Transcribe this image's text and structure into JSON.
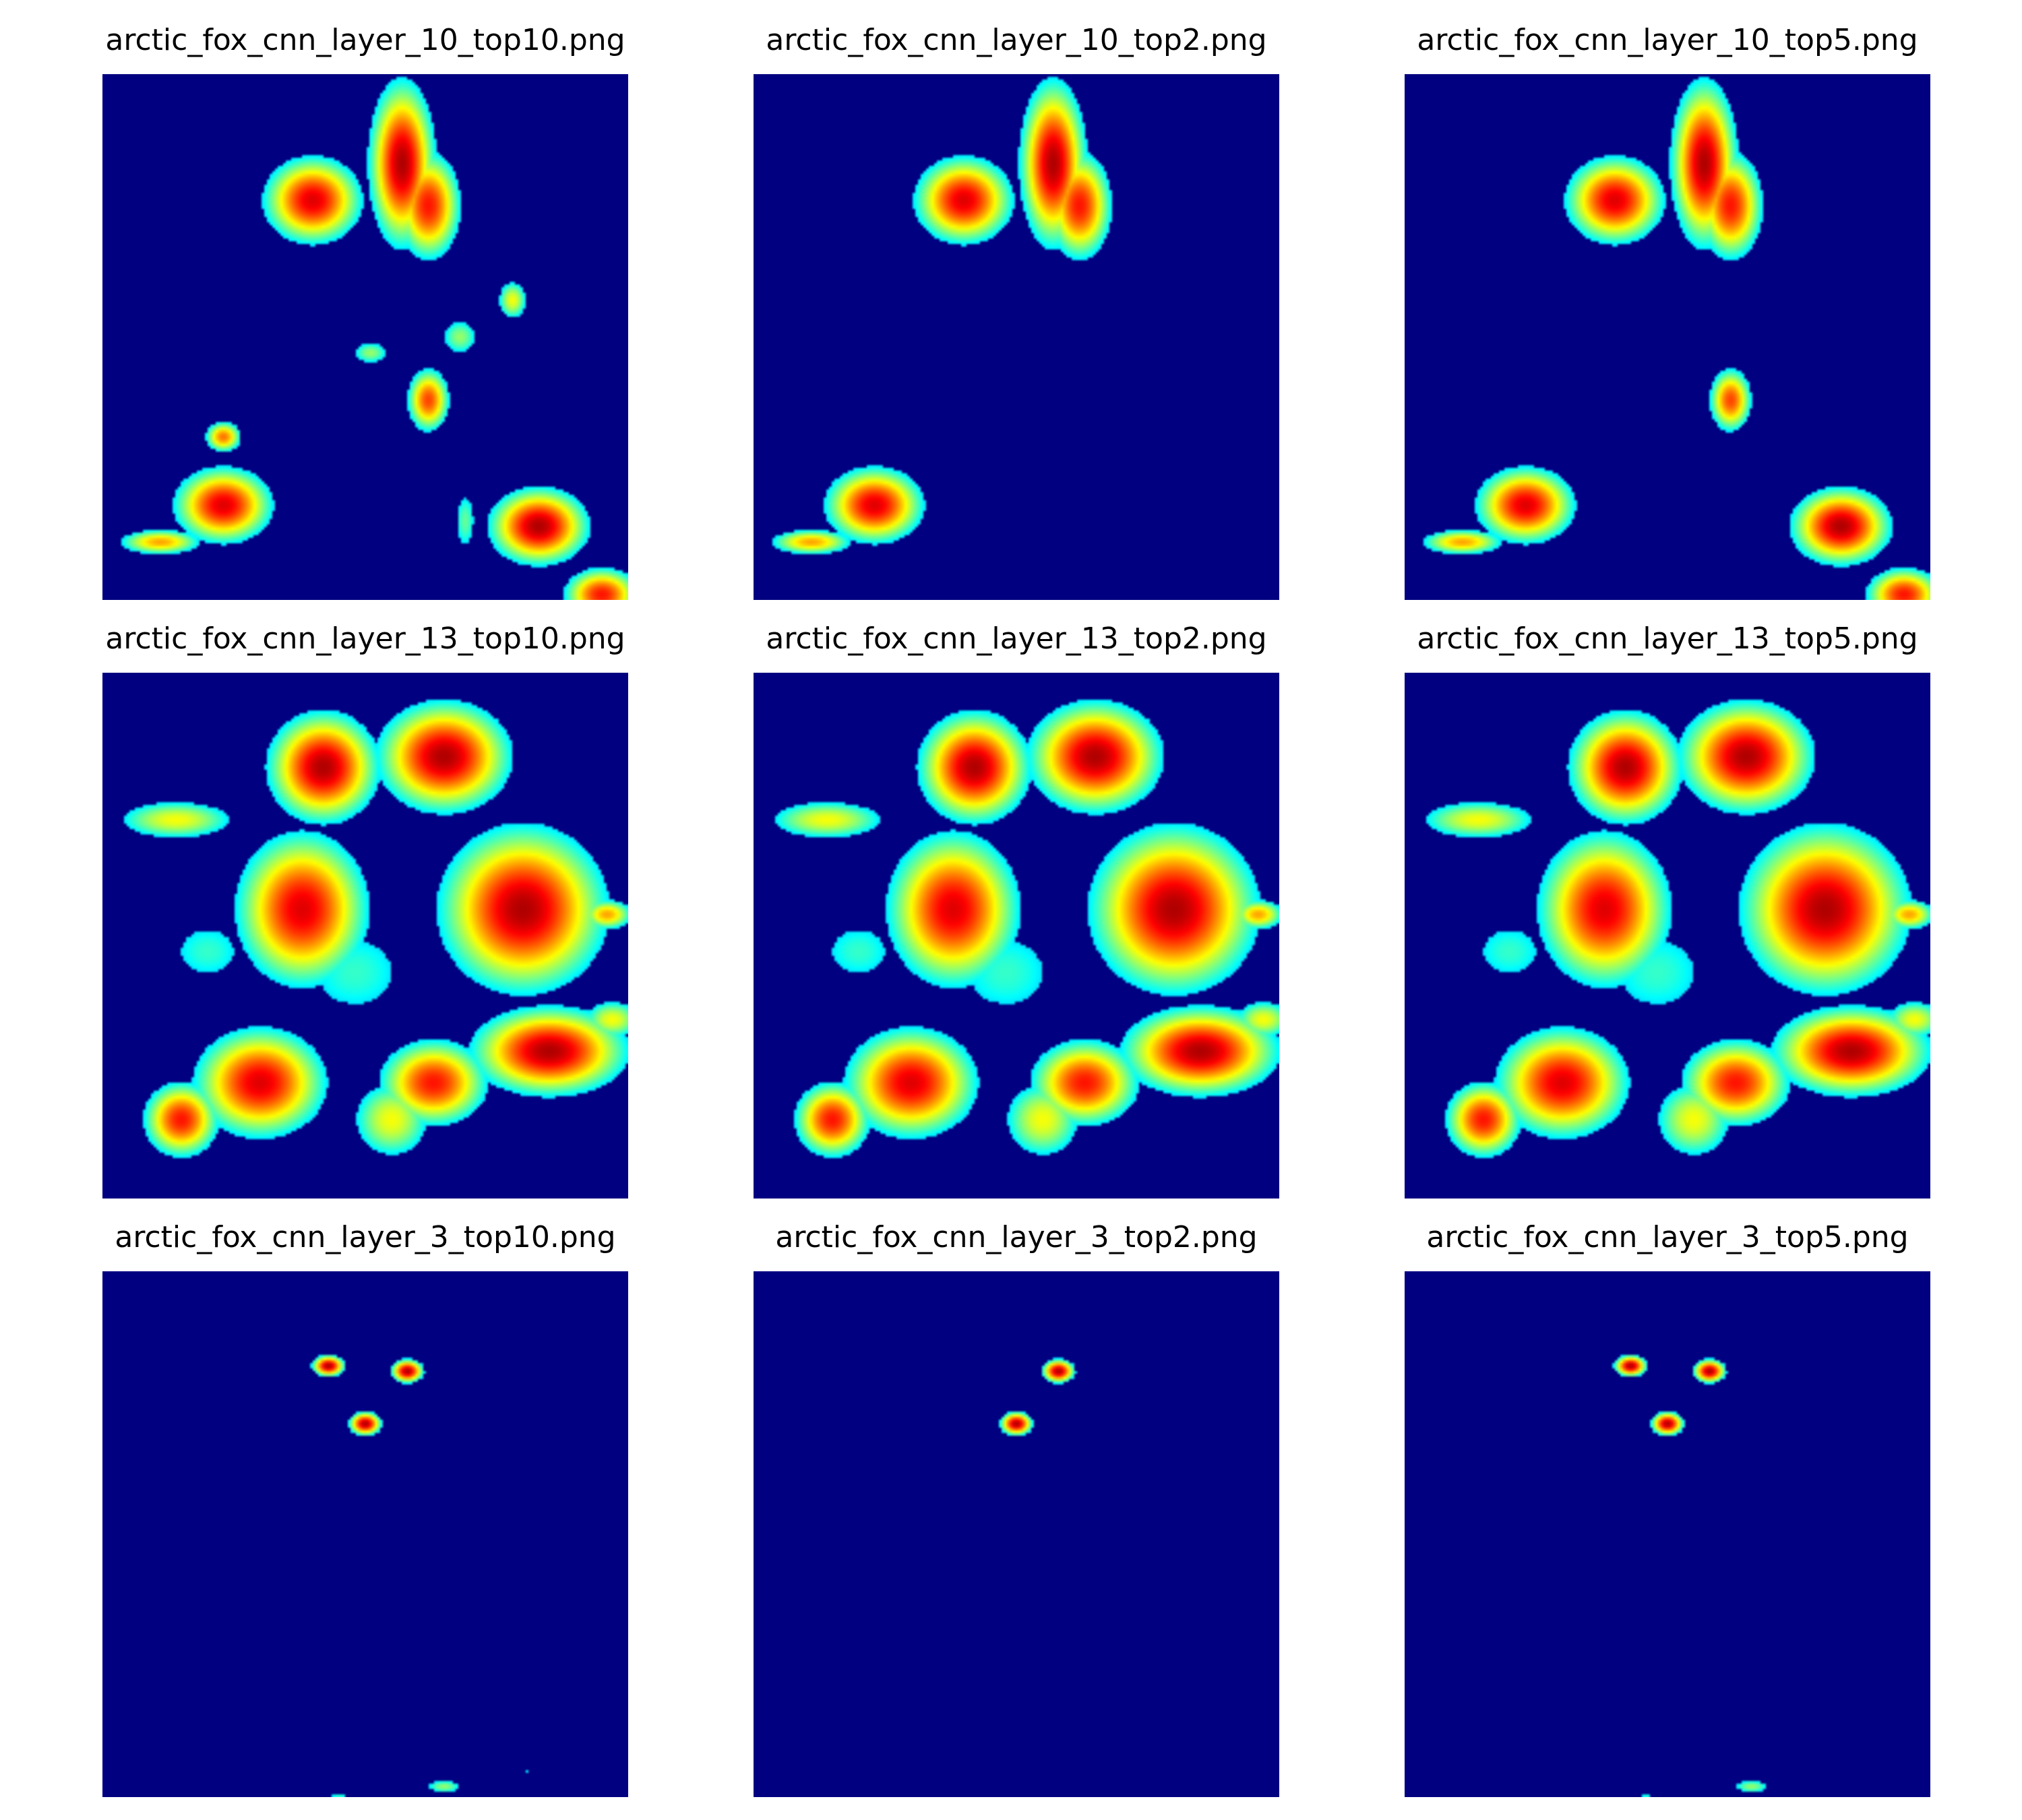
{
  "figure": {
    "colors": {
      "background": "#000080",
      "colormap": [
        "#000080",
        "#0000ff",
        "#00ffff",
        "#ffff00",
        "#ff0000",
        "#800000"
      ]
    }
  },
  "chart_data": [
    {
      "type": "heatmap",
      "title": "arctic_fox_cnn_layer_10_top10.png",
      "colormap": "jet",
      "axes": "off",
      "blobs": [
        {
          "cx": 0.4,
          "cy": 0.24,
          "rx": 0.09,
          "ry": 0.08,
          "peak": 0.9
        },
        {
          "cx": 0.57,
          "cy": 0.17,
          "rx": 0.06,
          "ry": 0.15,
          "peak": 0.95
        },
        {
          "cx": 0.62,
          "cy": 0.25,
          "rx": 0.06,
          "ry": 0.1,
          "peak": 0.85
        },
        {
          "cx": 0.78,
          "cy": 0.43,
          "rx": 0.03,
          "ry": 0.04,
          "peak": 0.6
        },
        {
          "cx": 0.68,
          "cy": 0.5,
          "rx": 0.04,
          "ry": 0.04,
          "peak": 0.5
        },
        {
          "cx": 0.51,
          "cy": 0.53,
          "rx": 0.04,
          "ry": 0.025,
          "peak": 0.5
        },
        {
          "cx": 0.62,
          "cy": 0.62,
          "rx": 0.04,
          "ry": 0.06,
          "peak": 0.8
        },
        {
          "cx": 0.23,
          "cy": 0.69,
          "rx": 0.035,
          "ry": 0.03,
          "peak": 0.75
        },
        {
          "cx": 0.23,
          "cy": 0.82,
          "rx": 0.09,
          "ry": 0.07,
          "peak": 0.9
        },
        {
          "cx": 0.11,
          "cy": 0.89,
          "rx": 0.08,
          "ry": 0.025,
          "peak": 0.7
        },
        {
          "cx": 0.69,
          "cy": 0.85,
          "rx": 0.025,
          "ry": 0.07,
          "peak": 0.45
        },
        {
          "cx": 0.83,
          "cy": 0.86,
          "rx": 0.09,
          "ry": 0.07,
          "peak": 0.95
        },
        {
          "cx": 0.95,
          "cy": 0.99,
          "rx": 0.07,
          "ry": 0.05,
          "peak": 0.85
        }
      ]
    },
    {
      "type": "heatmap",
      "title": "arctic_fox_cnn_layer_10_top2.png",
      "colormap": "jet",
      "axes": "off",
      "blobs": [
        {
          "cx": 0.4,
          "cy": 0.24,
          "rx": 0.09,
          "ry": 0.08,
          "peak": 0.9
        },
        {
          "cx": 0.57,
          "cy": 0.17,
          "rx": 0.06,
          "ry": 0.15,
          "peak": 0.95
        },
        {
          "cx": 0.62,
          "cy": 0.25,
          "rx": 0.06,
          "ry": 0.1,
          "peak": 0.85
        },
        {
          "cx": 0.23,
          "cy": 0.82,
          "rx": 0.09,
          "ry": 0.07,
          "peak": 0.9
        },
        {
          "cx": 0.11,
          "cy": 0.89,
          "rx": 0.08,
          "ry": 0.025,
          "peak": 0.7
        }
      ]
    },
    {
      "type": "heatmap",
      "title": "arctic_fox_cnn_layer_10_top5.png",
      "colormap": "jet",
      "axes": "off",
      "blobs": [
        {
          "cx": 0.4,
          "cy": 0.24,
          "rx": 0.09,
          "ry": 0.08,
          "peak": 0.9
        },
        {
          "cx": 0.57,
          "cy": 0.17,
          "rx": 0.06,
          "ry": 0.15,
          "peak": 0.95
        },
        {
          "cx": 0.62,
          "cy": 0.25,
          "rx": 0.06,
          "ry": 0.1,
          "peak": 0.85
        },
        {
          "cx": 0.62,
          "cy": 0.62,
          "rx": 0.04,
          "ry": 0.06,
          "peak": 0.8
        },
        {
          "cx": 0.23,
          "cy": 0.82,
          "rx": 0.09,
          "ry": 0.07,
          "peak": 0.9
        },
        {
          "cx": 0.11,
          "cy": 0.89,
          "rx": 0.08,
          "ry": 0.025,
          "peak": 0.7
        },
        {
          "cx": 0.83,
          "cy": 0.86,
          "rx": 0.09,
          "ry": 0.07,
          "peak": 0.95
        },
        {
          "cx": 0.95,
          "cy": 0.99,
          "rx": 0.07,
          "ry": 0.05,
          "peak": 0.85
        }
      ]
    },
    {
      "type": "heatmap",
      "title": "arctic_fox_cnn_layer_13_top10.png",
      "colormap": "jet",
      "axes": "off",
      "blobs": [
        {
          "cx": 0.42,
          "cy": 0.18,
          "rx": 0.1,
          "ry": 0.1,
          "peak": 0.95
        },
        {
          "cx": 0.65,
          "cy": 0.16,
          "rx": 0.12,
          "ry": 0.1,
          "peak": 0.95
        },
        {
          "cx": 0.38,
          "cy": 0.45,
          "rx": 0.12,
          "ry": 0.14,
          "peak": 0.9
        },
        {
          "cx": 0.8,
          "cy": 0.45,
          "rx": 0.15,
          "ry": 0.15,
          "peak": 0.95
        },
        {
          "cx": 0.85,
          "cy": 0.72,
          "rx": 0.14,
          "ry": 0.08,
          "peak": 0.95
        },
        {
          "cx": 0.63,
          "cy": 0.78,
          "rx": 0.1,
          "ry": 0.08,
          "peak": 0.85
        },
        {
          "cx": 0.3,
          "cy": 0.78,
          "rx": 0.12,
          "ry": 0.1,
          "peak": 0.9
        },
        {
          "cx": 0.15,
          "cy": 0.85,
          "rx": 0.07,
          "ry": 0.07,
          "peak": 0.85
        },
        {
          "cx": 0.14,
          "cy": 0.28,
          "rx": 0.12,
          "ry": 0.04,
          "peak": 0.6
        },
        {
          "cx": 0.48,
          "cy": 0.57,
          "rx": 0.14,
          "ry": 0.12,
          "peak": 0.4
        },
        {
          "cx": 0.2,
          "cy": 0.53,
          "rx": 0.1,
          "ry": 0.08,
          "peak": 0.4
        },
        {
          "cx": 0.96,
          "cy": 0.46,
          "rx": 0.05,
          "ry": 0.03,
          "peak": 0.7
        },
        {
          "cx": 0.97,
          "cy": 0.66,
          "rx": 0.06,
          "ry": 0.04,
          "peak": 0.6
        },
        {
          "cx": 0.55,
          "cy": 0.85,
          "rx": 0.08,
          "ry": 0.08,
          "peak": 0.6
        }
      ]
    },
    {
      "type": "heatmap",
      "title": "arctic_fox_cnn_layer_13_top2.png",
      "colormap": "jet",
      "axes": "off",
      "blobs": [
        {
          "cx": 0.42,
          "cy": 0.18,
          "rx": 0.1,
          "ry": 0.1,
          "peak": 0.95
        },
        {
          "cx": 0.65,
          "cy": 0.16,
          "rx": 0.12,
          "ry": 0.1,
          "peak": 0.95
        },
        {
          "cx": 0.38,
          "cy": 0.45,
          "rx": 0.12,
          "ry": 0.14,
          "peak": 0.9
        },
        {
          "cx": 0.8,
          "cy": 0.45,
          "rx": 0.15,
          "ry": 0.15,
          "peak": 0.95
        },
        {
          "cx": 0.85,
          "cy": 0.72,
          "rx": 0.14,
          "ry": 0.08,
          "peak": 0.95
        },
        {
          "cx": 0.63,
          "cy": 0.78,
          "rx": 0.1,
          "ry": 0.08,
          "peak": 0.85
        },
        {
          "cx": 0.3,
          "cy": 0.78,
          "rx": 0.12,
          "ry": 0.1,
          "peak": 0.9
        },
        {
          "cx": 0.15,
          "cy": 0.85,
          "rx": 0.07,
          "ry": 0.07,
          "peak": 0.85
        },
        {
          "cx": 0.14,
          "cy": 0.28,
          "rx": 0.12,
          "ry": 0.04,
          "peak": 0.6
        },
        {
          "cx": 0.48,
          "cy": 0.57,
          "rx": 0.14,
          "ry": 0.12,
          "peak": 0.4
        },
        {
          "cx": 0.2,
          "cy": 0.53,
          "rx": 0.1,
          "ry": 0.08,
          "peak": 0.4
        },
        {
          "cx": 0.96,
          "cy": 0.46,
          "rx": 0.05,
          "ry": 0.03,
          "peak": 0.7
        },
        {
          "cx": 0.97,
          "cy": 0.66,
          "rx": 0.06,
          "ry": 0.04,
          "peak": 0.6
        },
        {
          "cx": 0.55,
          "cy": 0.85,
          "rx": 0.08,
          "ry": 0.08,
          "peak": 0.6
        }
      ]
    },
    {
      "type": "heatmap",
      "title": "arctic_fox_cnn_layer_13_top5.png",
      "colormap": "jet",
      "axes": "off",
      "blobs": [
        {
          "cx": 0.42,
          "cy": 0.18,
          "rx": 0.1,
          "ry": 0.1,
          "peak": 0.95
        },
        {
          "cx": 0.65,
          "cy": 0.16,
          "rx": 0.12,
          "ry": 0.1,
          "peak": 0.95
        },
        {
          "cx": 0.38,
          "cy": 0.45,
          "rx": 0.12,
          "ry": 0.14,
          "peak": 0.9
        },
        {
          "cx": 0.8,
          "cy": 0.45,
          "rx": 0.15,
          "ry": 0.15,
          "peak": 0.95
        },
        {
          "cx": 0.85,
          "cy": 0.72,
          "rx": 0.14,
          "ry": 0.08,
          "peak": 0.95
        },
        {
          "cx": 0.63,
          "cy": 0.78,
          "rx": 0.1,
          "ry": 0.08,
          "peak": 0.85
        },
        {
          "cx": 0.3,
          "cy": 0.78,
          "rx": 0.12,
          "ry": 0.1,
          "peak": 0.9
        },
        {
          "cx": 0.15,
          "cy": 0.85,
          "rx": 0.07,
          "ry": 0.07,
          "peak": 0.85
        },
        {
          "cx": 0.14,
          "cy": 0.28,
          "rx": 0.12,
          "ry": 0.04,
          "peak": 0.6
        },
        {
          "cx": 0.48,
          "cy": 0.57,
          "rx": 0.14,
          "ry": 0.12,
          "peak": 0.4
        },
        {
          "cx": 0.2,
          "cy": 0.53,
          "rx": 0.1,
          "ry": 0.08,
          "peak": 0.4
        },
        {
          "cx": 0.96,
          "cy": 0.46,
          "rx": 0.05,
          "ry": 0.03,
          "peak": 0.7
        },
        {
          "cx": 0.97,
          "cy": 0.66,
          "rx": 0.06,
          "ry": 0.04,
          "peak": 0.6
        },
        {
          "cx": 0.55,
          "cy": 0.85,
          "rx": 0.08,
          "ry": 0.08,
          "peak": 0.6
        }
      ]
    },
    {
      "type": "heatmap",
      "title": "arctic_fox_cnn_layer_3_top10.png",
      "colormap": "jet",
      "axes": "off",
      "blobs": [
        {
          "cx": 0.43,
          "cy": 0.18,
          "rx": 0.03,
          "ry": 0.02,
          "peak": 0.95
        },
        {
          "cx": 0.58,
          "cy": 0.19,
          "rx": 0.03,
          "ry": 0.022,
          "peak": 0.95
        },
        {
          "cx": 0.5,
          "cy": 0.29,
          "rx": 0.03,
          "ry": 0.022,
          "peak": 0.95
        },
        {
          "cx": 0.65,
          "cy": 0.98,
          "rx": 0.04,
          "ry": 0.015,
          "peak": 0.5
        },
        {
          "cx": 0.45,
          "cy": 1.0,
          "rx": 0.03,
          "ry": 0.012,
          "peak": 0.4
        },
        {
          "cx": 0.81,
          "cy": 0.95,
          "rx": 0.01,
          "ry": 0.008,
          "peak": 0.35
        }
      ]
    },
    {
      "type": "heatmap",
      "title": "arctic_fox_cnn_layer_3_top2.png",
      "colormap": "jet",
      "axes": "off",
      "blobs": [
        {
          "cx": 0.58,
          "cy": 0.19,
          "rx": 0.03,
          "ry": 0.022,
          "peak": 0.95
        },
        {
          "cx": 0.5,
          "cy": 0.29,
          "rx": 0.03,
          "ry": 0.022,
          "peak": 0.95
        }
      ]
    },
    {
      "type": "heatmap",
      "title": "arctic_fox_cnn_layer_3_top5.png",
      "colormap": "jet",
      "axes": "off",
      "blobs": [
        {
          "cx": 0.43,
          "cy": 0.18,
          "rx": 0.03,
          "ry": 0.02,
          "peak": 0.95
        },
        {
          "cx": 0.58,
          "cy": 0.19,
          "rx": 0.03,
          "ry": 0.022,
          "peak": 0.95
        },
        {
          "cx": 0.5,
          "cy": 0.29,
          "rx": 0.03,
          "ry": 0.022,
          "peak": 0.95
        },
        {
          "cx": 0.66,
          "cy": 0.98,
          "rx": 0.04,
          "ry": 0.015,
          "peak": 0.5
        },
        {
          "cx": 0.46,
          "cy": 1.0,
          "rx": 0.02,
          "ry": 0.01,
          "peak": 0.4
        }
      ]
    }
  ]
}
